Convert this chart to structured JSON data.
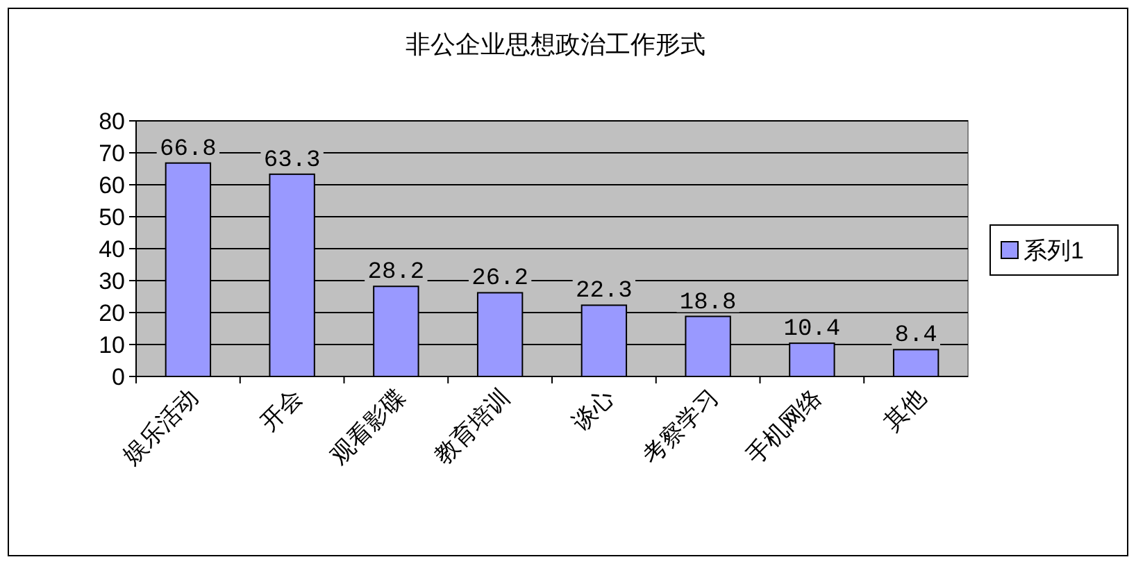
{
  "chart_data": {
    "type": "bar",
    "title": "非公企业思想政治工作形式",
    "categories": [
      "娱乐活动",
      "开会",
      "观看影碟",
      "教育培训",
      "谈心",
      "考察学习",
      "手机网络",
      "其他"
    ],
    "series": [
      {
        "name": "系列1",
        "color": "#9999ff",
        "values": [
          66.8,
          63.3,
          28.2,
          26.2,
          22.3,
          18.8,
          10.4,
          8.4
        ]
      }
    ],
    "ylim": [
      0,
      80
    ],
    "yticks": [
      0,
      10,
      20,
      30,
      40,
      50,
      60,
      70,
      80
    ],
    "grid": "y",
    "legend": "right",
    "data_labels": true
  }
}
